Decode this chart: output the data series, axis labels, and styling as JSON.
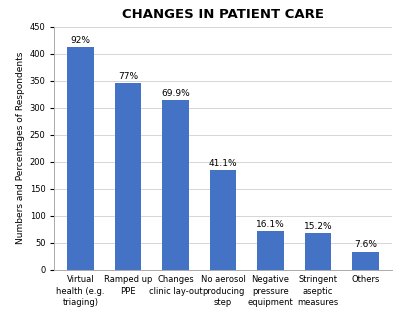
{
  "title": "CHANGES IN PATIENT CARE",
  "categories": [
    "Virtual\nhealth (e.g.\ntriaging)",
    "Ramped up\nPPE",
    "Changes\nclinic lay-out",
    "No aerosol\nproducing\nstep",
    "Negative\npressure\nequipment",
    "Stringent\naseptic\nmeasures",
    "Others"
  ],
  "values": [
    413,
    346,
    314,
    184,
    72,
    68,
    34
  ],
  "labels": [
    "92%",
    "77%",
    "69.9%",
    "41.1%",
    "16.1%",
    "15.2%",
    "7.6%"
  ],
  "bar_color": "#4472C4",
  "ylabel": "Numbers and Percentages of Respondents",
  "ylim": [
    0,
    450
  ],
  "yticks": [
    0,
    50,
    100,
    150,
    200,
    250,
    300,
    350,
    400,
    450
  ],
  "title_fontsize": 9.5,
  "label_fontsize": 6.5,
  "tick_fontsize": 6.0,
  "ylabel_fontsize": 6.5,
  "background_color": "#ffffff",
  "grid_color": "#d0d0d0"
}
